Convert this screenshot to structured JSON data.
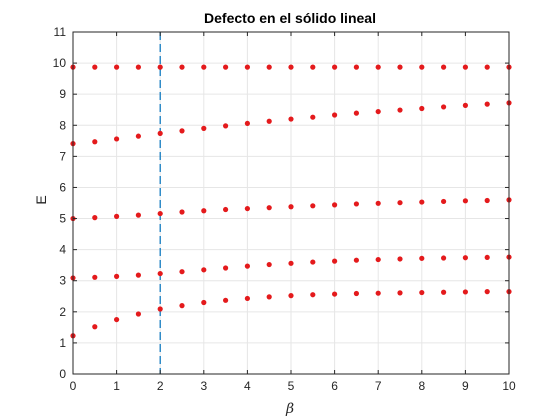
{
  "chart_data": {
    "type": "scatter",
    "title": "Defecto en el sólido lineal",
    "xlabel": "β",
    "ylabel": "E",
    "xlim": [
      0,
      10
    ],
    "ylim": [
      0,
      11
    ],
    "xticks": [
      0,
      1,
      2,
      3,
      4,
      5,
      6,
      7,
      8,
      9,
      10
    ],
    "yticks": [
      0,
      1,
      2,
      3,
      4,
      5,
      6,
      7,
      8,
      9,
      10,
      11
    ],
    "grid": true,
    "marker_color": "#e41a1c",
    "reference_line": {
      "x": 2,
      "style": "dashed",
      "color": "#0072bd"
    },
    "x": [
      0,
      0.5,
      1,
      1.5,
      2,
      2.5,
      3,
      3.5,
      4,
      4.5,
      5,
      5.5,
      6,
      6.5,
      7,
      7.5,
      8,
      8.5,
      9,
      9.5,
      10
    ],
    "series": [
      {
        "values": [
          1.23,
          1.52,
          1.75,
          1.93,
          2.09,
          2.2,
          2.3,
          2.37,
          2.43,
          2.48,
          2.52,
          2.55,
          2.57,
          2.59,
          2.6,
          2.61,
          2.62,
          2.63,
          2.64,
          2.65,
          2.65
        ]
      },
      {
        "values": [
          3.09,
          3.11,
          3.14,
          3.18,
          3.23,
          3.29,
          3.35,
          3.41,
          3.47,
          3.52,
          3.56,
          3.6,
          3.63,
          3.66,
          3.68,
          3.7,
          3.72,
          3.73,
          3.74,
          3.75,
          3.76
        ]
      },
      {
        "values": [
          5.0,
          5.03,
          5.07,
          5.11,
          5.16,
          5.21,
          5.25,
          5.29,
          5.32,
          5.35,
          5.38,
          5.41,
          5.44,
          5.47,
          5.49,
          5.51,
          5.53,
          5.55,
          5.57,
          5.58,
          5.6
        ]
      },
      {
        "values": [
          7.41,
          7.47,
          7.56,
          7.65,
          7.74,
          7.82,
          7.9,
          7.98,
          8.06,
          8.13,
          8.2,
          8.26,
          8.33,
          8.39,
          8.44,
          8.49,
          8.54,
          8.59,
          8.64,
          8.68,
          8.72
        ]
      },
      {
        "values": [
          9.87,
          9.87,
          9.87,
          9.87,
          9.87,
          9.87,
          9.87,
          9.87,
          9.87,
          9.87,
          9.87,
          9.87,
          9.87,
          9.87,
          9.87,
          9.87,
          9.87,
          9.87,
          9.87,
          9.87,
          9.87
        ]
      }
    ]
  }
}
